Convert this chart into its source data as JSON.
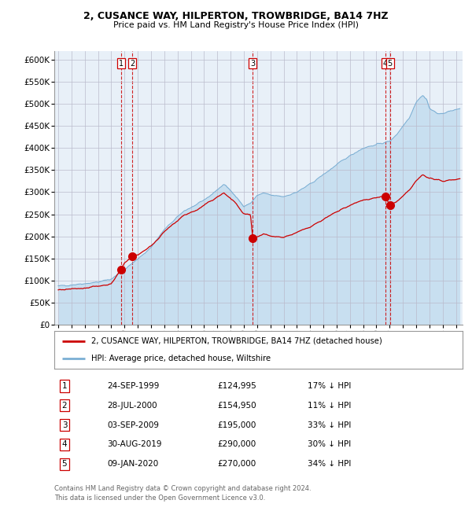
{
  "title": "2, CUSANCE WAY, HILPERTON, TROWBRIDGE, BA14 7HZ",
  "subtitle": "Price paid vs. HM Land Registry's House Price Index (HPI)",
  "hpi_label": "HPI: Average price, detached house, Wiltshire",
  "price_label": "2, CUSANCE WAY, HILPERTON, TROWBRIDGE, BA14 7HZ (detached house)",
  "hpi_color": "#7bafd4",
  "hpi_fill": "#c8dff0",
  "price_color": "#cc0000",
  "vline_color": "#cc0000",
  "marker_color": "#cc0000",
  "background_chart": "#e8f0f8",
  "purchases": [
    {
      "num": 1,
      "date": "24-SEP-1999",
      "date_x": 1999.73,
      "price": 124995,
      "hpi_pct": "17% ↓ HPI"
    },
    {
      "num": 2,
      "date": "28-JUL-2000",
      "date_x": 2000.57,
      "price": 154950,
      "hpi_pct": "11% ↓ HPI"
    },
    {
      "num": 3,
      "date": "03-SEP-2009",
      "date_x": 2009.67,
      "price": 195000,
      "hpi_pct": "33% ↓ HPI"
    },
    {
      "num": 4,
      "date": "30-AUG-2019",
      "date_x": 2019.66,
      "price": 290000,
      "hpi_pct": "30% ↓ HPI"
    },
    {
      "num": 5,
      "date": "09-JAN-2020",
      "date_x": 2020.02,
      "price": 270000,
      "hpi_pct": "34% ↓ HPI"
    }
  ],
  "xlim": [
    1994.7,
    2025.5
  ],
  "ylim": [
    0,
    620000
  ],
  "yticks": [
    0,
    50000,
    100000,
    150000,
    200000,
    250000,
    300000,
    350000,
    400000,
    450000,
    500000,
    550000,
    600000
  ],
  "ytick_labels": [
    "£0",
    "£50K",
    "£100K",
    "£150K",
    "£200K",
    "£250K",
    "£300K",
    "£350K",
    "£400K",
    "£450K",
    "£500K",
    "£550K",
    "£600K"
  ],
  "footer": "Contains HM Land Registry data © Crown copyright and database right 2024.\nThis data is licensed under the Open Government Licence v3.0.",
  "xticks": [
    1995,
    1996,
    1997,
    1998,
    1999,
    2000,
    2001,
    2002,
    2003,
    2004,
    2005,
    2006,
    2007,
    2008,
    2009,
    2010,
    2011,
    2012,
    2013,
    2014,
    2015,
    2016,
    2017,
    2018,
    2019,
    2020,
    2021,
    2022,
    2023,
    2024,
    2025
  ],
  "hpi_anchors": [
    [
      1995.0,
      87000
    ],
    [
      1996.0,
      90000
    ],
    [
      1997.0,
      93000
    ],
    [
      1998.0,
      96000
    ],
    [
      1999.0,
      103000
    ],
    [
      2000.0,
      125000
    ],
    [
      2001.0,
      148000
    ],
    [
      2002.0,
      175000
    ],
    [
      2003.0,
      215000
    ],
    [
      2004.5,
      258000
    ],
    [
      2005.5,
      272000
    ],
    [
      2006.5,
      293000
    ],
    [
      2007.5,
      318000
    ],
    [
      2008.3,
      295000
    ],
    [
      2009.0,
      267000
    ],
    [
      2009.5,
      275000
    ],
    [
      2010.0,
      292000
    ],
    [
      2010.5,
      298000
    ],
    [
      2011.0,
      293000
    ],
    [
      2012.0,
      290000
    ],
    [
      2013.0,
      300000
    ],
    [
      2014.0,
      318000
    ],
    [
      2015.0,
      340000
    ],
    [
      2016.0,
      362000
    ],
    [
      2017.0,
      383000
    ],
    [
      2018.0,
      400000
    ],
    [
      2019.0,
      408000
    ],
    [
      2019.5,
      412000
    ],
    [
      2020.0,
      415000
    ],
    [
      2020.5,
      430000
    ],
    [
      2021.0,
      450000
    ],
    [
      2021.5,
      470000
    ],
    [
      2022.0,
      505000
    ],
    [
      2022.5,
      520000
    ],
    [
      2022.8,
      510000
    ],
    [
      2023.0,
      490000
    ],
    [
      2023.5,
      480000
    ],
    [
      2024.0,
      478000
    ],
    [
      2024.5,
      483000
    ],
    [
      2025.3,
      490000
    ]
  ],
  "price_anchors": [
    [
      1995.0,
      78000
    ],
    [
      1996.0,
      80000
    ],
    [
      1997.0,
      83000
    ],
    [
      1998.0,
      87000
    ],
    [
      1999.0,
      92000
    ],
    [
      1999.73,
      124995
    ],
    [
      2000.0,
      140000
    ],
    [
      2000.57,
      154950
    ],
    [
      2001.0,
      158000
    ],
    [
      2002.0,
      178000
    ],
    [
      2003.0,
      210000
    ],
    [
      2004.5,
      248000
    ],
    [
      2005.5,
      260000
    ],
    [
      2006.5,
      280000
    ],
    [
      2007.5,
      298000
    ],
    [
      2008.3,
      278000
    ],
    [
      2009.0,
      250000
    ],
    [
      2009.5,
      248000
    ],
    [
      2009.67,
      195000
    ],
    [
      2010.0,
      198000
    ],
    [
      2010.5,
      205000
    ],
    [
      2011.0,
      200000
    ],
    [
      2012.0,
      198000
    ],
    [
      2013.0,
      208000
    ],
    [
      2014.0,
      222000
    ],
    [
      2015.0,
      238000
    ],
    [
      2016.0,
      255000
    ],
    [
      2017.0,
      270000
    ],
    [
      2018.0,
      282000
    ],
    [
      2019.0,
      288000
    ],
    [
      2019.66,
      290000
    ],
    [
      2020.02,
      270000
    ],
    [
      2020.5,
      278000
    ],
    [
      2021.0,
      290000
    ],
    [
      2021.5,
      305000
    ],
    [
      2022.0,
      325000
    ],
    [
      2022.5,
      340000
    ],
    [
      2023.0,
      332000
    ],
    [
      2023.5,
      328000
    ],
    [
      2024.0,
      325000
    ],
    [
      2024.5,
      328000
    ],
    [
      2025.3,
      330000
    ]
  ]
}
